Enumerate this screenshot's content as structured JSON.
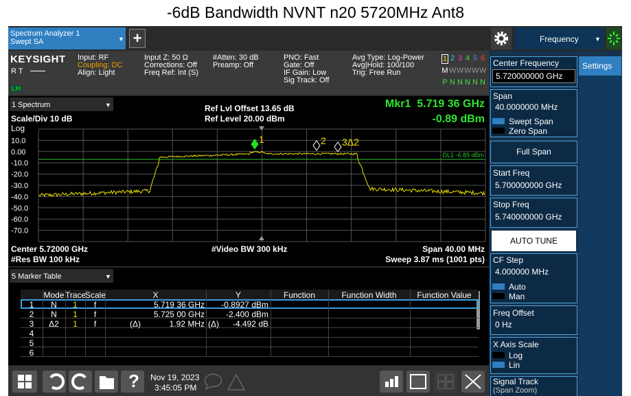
{
  "title": "-6dB Bandwidth NVNT n20 5720MHz Ant8",
  "tabs": {
    "instrument": [
      "Spectrum Analyzer 1",
      "Swept SA"
    ],
    "add": "+",
    "menu": "Frequency"
  },
  "info": {
    "brand": "KEYSIGHT",
    "rt": "R  T",
    "lxi": "LXI",
    "columns": [
      [
        "Input: RF",
        "Coupling: DC",
        "Align: Light"
      ],
      [
        "Input Z: 50 Ω",
        "Corrections: Off",
        "Freq Ref: Int (S)"
      ],
      [
        "#Atten: 30 dB",
        "Preamp: Off"
      ],
      [
        "PNO: Fast",
        "Gate: Off",
        "IF Gain: Low",
        "Sig Track: Off"
      ],
      [
        "Avg Type: Log-Power",
        "Avg|Hold: 100/100",
        "Trig: Free Run"
      ]
    ],
    "trace_numbers": [
      "1",
      "2",
      "3",
      "4",
      "5",
      "6"
    ],
    "trace_types": [
      "M",
      "W",
      "W",
      "W",
      "W",
      "W"
    ],
    "trace_detectors": [
      "P",
      "N",
      "N",
      "N",
      "N",
      "N"
    ]
  },
  "graph": {
    "window": "1 Spectrum",
    "ref_offset": "Ref Lvl Offset 13.65 dB",
    "ref_level": "Ref Level 20.00 dBm",
    "marker_freq": "Mkr1  5.719 36 GHz",
    "marker_amp": "-0.89 dBm",
    "scale": "Scale/Div 10 dB",
    "scale_type": "Log",
    "y_labels": [
      "10.0",
      "0.00",
      "-10.0",
      "-20.0",
      "-30.0",
      "-40.0",
      "-50.0",
      "-60.0",
      "-70.0"
    ],
    "display_line": "DL1 -6.89 dBm",
    "markers": [
      "1",
      "2",
      "3Δ2"
    ],
    "center": "Center 5.72000 GHz",
    "vbw": "#Video BW 300 kHz",
    "span": "Span 40.00 MHz",
    "rbw": "#Res BW 100 kHz",
    "sweep": "Sweep 3.87 ms (1001 pts)"
  },
  "marker_table": {
    "window": "5 Marker Table",
    "columns": [
      "Mode",
      "Trace",
      "Scale",
      "X",
      "Y",
      "Function",
      "Function Width",
      "Function Value"
    ],
    "rows": [
      {
        "n": "1",
        "mode": "N",
        "trace": "1",
        "scale": "f",
        "x": "5.719 36 GHz",
        "y": "-0.8927 dBm"
      },
      {
        "n": "2",
        "mode": "N",
        "trace": "1",
        "scale": "f",
        "x": "5.725 00 GHz",
        "y": "-2.400 dBm"
      },
      {
        "n": "3",
        "mode": "Δ2",
        "trace": "1",
        "scale": "f",
        "x_ref": "(Δ)",
        "x": "1.92 MHz",
        "y_ref": "(Δ)",
        "y": "-4.492 dB"
      },
      {
        "n": "4"
      },
      {
        "n": "5"
      },
      {
        "n": "6"
      }
    ]
  },
  "taskbar": {
    "help": "?",
    "date": "Nov 19, 2023",
    "time": "3:45:05 PM"
  },
  "panel": {
    "tab": "Settings",
    "center_freq": {
      "label": "Center Frequency",
      "value": "5.720000000 GHz"
    },
    "span": {
      "label": "Span",
      "value": "40.0000000 MHz",
      "options": [
        "Swept Span",
        "Zero Span"
      ]
    },
    "full_span": "Full Span",
    "start_freq": {
      "label": "Start Freq",
      "value": "5.700000000 GHz"
    },
    "stop_freq": {
      "label": "Stop Freq",
      "value": "5.740000000 GHz"
    },
    "auto_tune": "AUTO TUNE",
    "cf_step": {
      "label": "CF Step",
      "value": "4.000000 MHz",
      "options": [
        "Auto",
        "Man"
      ]
    },
    "freq_offset": {
      "label": "Freq Offset",
      "value": "0 Hz"
    },
    "x_axis_scale": {
      "label": "X Axis Scale",
      "options": [
        "Log",
        "Lin"
      ]
    },
    "signal_track": {
      "label": "Signal Track",
      "sub": "(Span Zoom)"
    }
  }
}
